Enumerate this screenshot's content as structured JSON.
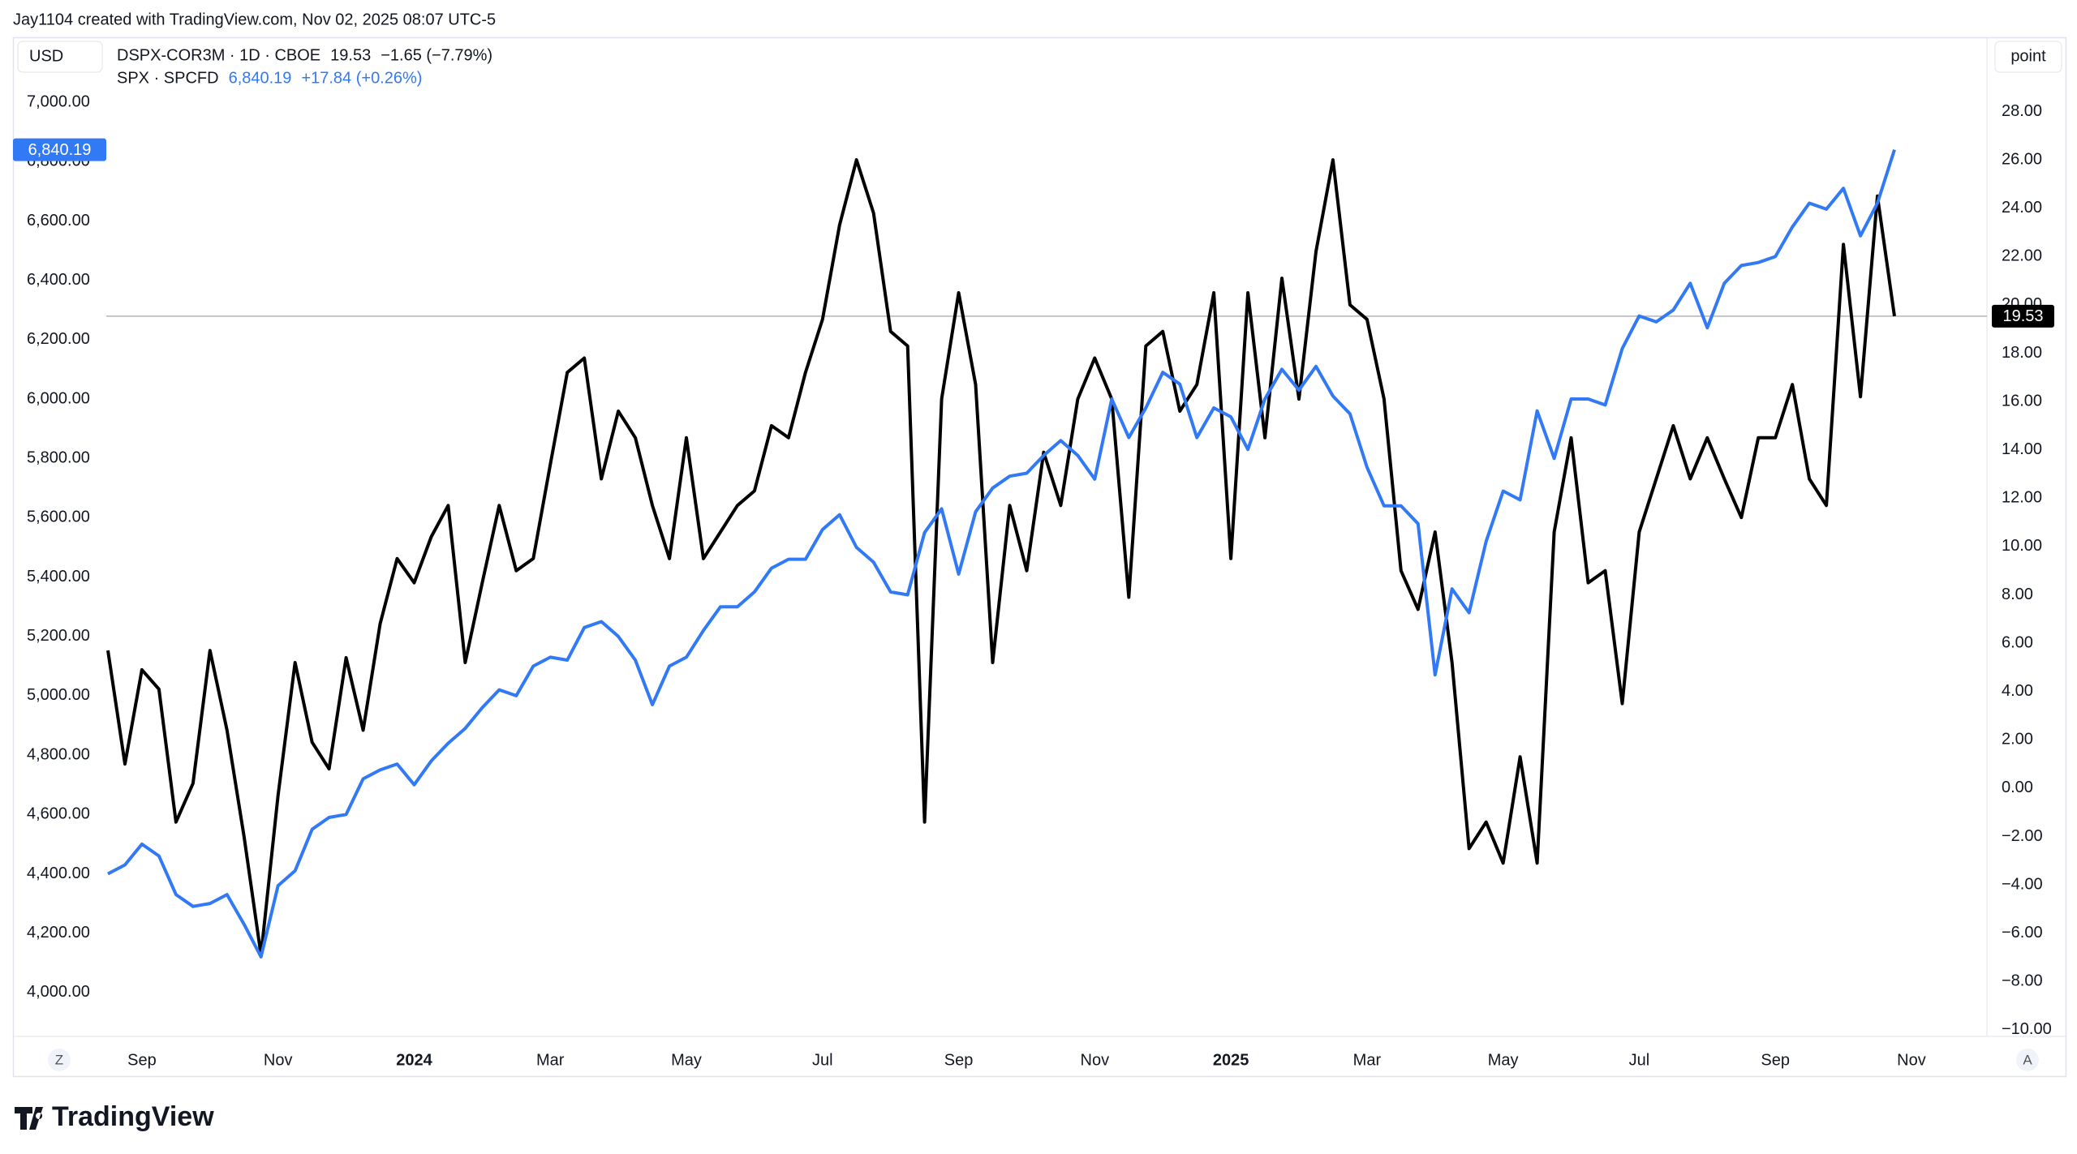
{
  "chart_data": {
    "type": "line",
    "title": "Jay1104 created with TradingView.com, Nov 02, 2025 08:07 UTC-5",
    "y_label": "USD",
    "y2_label": "point",
    "corner_buttons": [
      "Z",
      "A"
    ],
    "logo": "TradingView",
    "grid": false,
    "x": [
      "2023-08",
      "2023-08",
      "2023-09",
      "2023-09",
      "2023-09",
      "2023-09",
      "2023-10",
      "2023-10",
      "2023-10",
      "2023-10",
      "2023-11",
      "2023-11",
      "2023-11",
      "2023-11",
      "2023-12",
      "2023-12",
      "2023-12",
      "2023-12",
      "2024-01",
      "2024-01",
      "2024-01",
      "2024-01",
      "2024-02",
      "2024-02",
      "2024-02",
      "2024-02",
      "2024-03",
      "2024-03",
      "2024-03",
      "2024-03",
      "2024-04",
      "2024-04",
      "2024-04",
      "2024-04",
      "2024-05",
      "2024-05",
      "2024-05",
      "2024-05",
      "2024-06",
      "2024-06",
      "2024-06",
      "2024-06",
      "2024-07",
      "2024-07",
      "2024-07",
      "2024-07",
      "2024-08",
      "2024-08",
      "2024-08",
      "2024-08",
      "2024-09",
      "2024-09",
      "2024-09",
      "2024-09",
      "2024-10",
      "2024-10",
      "2024-10",
      "2024-10",
      "2024-11",
      "2024-11",
      "2024-11",
      "2024-11",
      "2024-12",
      "2024-12",
      "2024-12",
      "2024-12",
      "2025-01",
      "2025-01",
      "2025-01",
      "2025-01",
      "2025-02",
      "2025-02",
      "2025-02",
      "2025-02",
      "2025-03",
      "2025-03",
      "2025-03",
      "2025-03",
      "2025-04",
      "2025-04",
      "2025-04",
      "2025-04",
      "2025-05",
      "2025-05",
      "2025-05",
      "2025-05",
      "2025-06",
      "2025-06",
      "2025-06",
      "2025-06",
      "2025-07",
      "2025-07",
      "2025-07",
      "2025-07",
      "2025-08",
      "2025-08",
      "2025-08",
      "2025-08",
      "2025-09",
      "2025-09",
      "2025-09",
      "2025-09",
      "2025-10",
      "2025-10",
      "2025-10",
      "2025-10"
    ],
    "xticks": [
      {
        "value": "2023-09",
        "label": "Sep"
      },
      {
        "value": "2023-11",
        "label": "Nov"
      },
      {
        "value": "2024-01",
        "label": "2024"
      },
      {
        "value": "2024-03",
        "label": "Mar"
      },
      {
        "value": "2024-05",
        "label": "May"
      },
      {
        "value": "2024-07",
        "label": "Jul"
      },
      {
        "value": "2024-09",
        "label": "Sep"
      },
      {
        "value": "2024-11",
        "label": "Nov"
      },
      {
        "value": "2025-01",
        "label": "2025"
      },
      {
        "value": "2025-03",
        "label": "Mar"
      },
      {
        "value": "2025-05",
        "label": "May"
      },
      {
        "value": "2025-07",
        "label": "Jul"
      },
      {
        "value": "2025-09",
        "label": "Sep"
      },
      {
        "value": "2025-11",
        "label": "Nov"
      }
    ],
    "ylim": [
      3852,
      7219
    ],
    "yticks": [
      {
        "value": 4000,
        "label": "4,000.00"
      },
      {
        "value": 4200,
        "label": "4,200.00"
      },
      {
        "value": 4400,
        "label": "4,400.00"
      },
      {
        "value": 4600,
        "label": "4,600.00"
      },
      {
        "value": 4800,
        "label": "4,800.00"
      },
      {
        "value": 5000,
        "label": "5,000.00"
      },
      {
        "value": 5200,
        "label": "5,200.00"
      },
      {
        "value": 5400,
        "label": "5,400.00"
      },
      {
        "value": 5600,
        "label": "5,600.00"
      },
      {
        "value": 5800,
        "label": "5,800.00"
      },
      {
        "value": 6000,
        "label": "6,000.00"
      },
      {
        "value": 6200,
        "label": "6,200.00"
      },
      {
        "value": 6400,
        "label": "6,400.00"
      },
      {
        "value": 6600,
        "label": "6,600.00"
      },
      {
        "value": 6800,
        "label": "6,800.00"
      },
      {
        "value": 7000,
        "label": "7,000.00"
      }
    ],
    "y2lim": [
      -10.27,
      31.07
    ],
    "y2ticks": [
      {
        "value": -10,
        "label": "−10.00"
      },
      {
        "value": -8,
        "label": "−8.00"
      },
      {
        "value": -6,
        "label": "−6.00"
      },
      {
        "value": -4,
        "label": "−4.00"
      },
      {
        "value": -2,
        "label": "−2.00"
      },
      {
        "value": 0,
        "label": "0.00"
      },
      {
        "value": 2,
        "label": "2.00"
      },
      {
        "value": 4,
        "label": "4.00"
      },
      {
        "value": 6,
        "label": "6.00"
      },
      {
        "value": 8,
        "label": "8.00"
      },
      {
        "value": 10,
        "label": "10.00"
      },
      {
        "value": 12,
        "label": "12.00"
      },
      {
        "value": 14,
        "label": "14.00"
      },
      {
        "value": 16,
        "label": "16.00"
      },
      {
        "value": 18,
        "label": "18.00"
      },
      {
        "value": 20,
        "label": "20.00"
      },
      {
        "value": 22,
        "label": "22.00"
      },
      {
        "value": 24,
        "label": "24.00"
      },
      {
        "value": 26,
        "label": "26.00"
      },
      {
        "value": 28,
        "label": "28.00"
      }
    ],
    "series": [
      {
        "name": "DSPX-COR3M · 1D · CBOE",
        "last_label": "19.53",
        "change": "−1.65 (−7.79%)",
        "color": "#000000",
        "axis": "y2",
        "values": [
          5.7,
          1.0,
          4.9,
          4.1,
          -1.4,
          0.2,
          5.7,
          2.4,
          -2.0,
          -6.9,
          -0.3,
          5.2,
          1.9,
          0.8,
          5.4,
          2.4,
          6.8,
          9.5,
          8.5,
          10.4,
          11.7,
          5.2,
          8.5,
          11.7,
          9.0,
          9.5,
          13.4,
          17.2,
          17.8,
          12.8,
          15.6,
          14.5,
          11.7,
          9.5,
          14.5,
          9.5,
          10.6,
          11.7,
          12.3,
          15.0,
          14.5,
          17.2,
          19.4,
          23.3,
          26.0,
          23.8,
          18.9,
          18.3,
          -1.4,
          16.1,
          20.5,
          16.7,
          5.2,
          11.7,
          9.0,
          13.9,
          11.7,
          16.1,
          17.8,
          16.1,
          7.9,
          18.3,
          18.9,
          15.6,
          16.7,
          20.5,
          9.5,
          20.5,
          14.5,
          21.1,
          16.1,
          22.2,
          26.0,
          20.0,
          19.4,
          16.1,
          9.0,
          7.4,
          10.6,
          5.2,
          -2.5,
          -1.4,
          -3.1,
          1.3,
          -3.1,
          10.6,
          14.5,
          8.5,
          9.0,
          3.5,
          10.6,
          12.8,
          15.0,
          12.8,
          14.5,
          12.8,
          11.2,
          14.5,
          14.5,
          16.7,
          12.8,
          11.7,
          22.5,
          16.2,
          24.5,
          19.53
        ]
      },
      {
        "name": "SPX · SPCFD",
        "last_label": "6,840.19",
        "change": "+17.84 (+0.26%)",
        "color": "#3179f5",
        "axis": "y",
        "values": [
          4400,
          4430,
          4500,
          4460,
          4330,
          4290,
          4300,
          4330,
          4230,
          4120,
          4360,
          4410,
          4550,
          4590,
          4600,
          4720,
          4750,
          4770,
          4700,
          4780,
          4840,
          4890,
          4960,
          5020,
          5000,
          5100,
          5130,
          5120,
          5230,
          5250,
          5200,
          5120,
          4970,
          5100,
          5130,
          5220,
          5300,
          5300,
          5350,
          5430,
          5460,
          5460,
          5560,
          5610,
          5500,
          5450,
          5350,
          5340,
          5550,
          5630,
          5410,
          5620,
          5700,
          5740,
          5750,
          5810,
          5860,
          5810,
          5730,
          6000,
          5870,
          5970,
          6090,
          6050,
          5870,
          5970,
          5940,
          5830,
          6000,
          6100,
          6030,
          6110,
          6010,
          5950,
          5770,
          5640,
          5640,
          5580,
          5070,
          5360,
          5280,
          5520,
          5690,
          5660,
          5960,
          5800,
          6000,
          6000,
          5980,
          6170,
          6280,
          6260,
          6300,
          6390,
          6240,
          6390,
          6450,
          6460,
          6480,
          6580,
          6660,
          6640,
          6710,
          6550,
          6660,
          6840.19
        ]
      }
    ]
  }
}
